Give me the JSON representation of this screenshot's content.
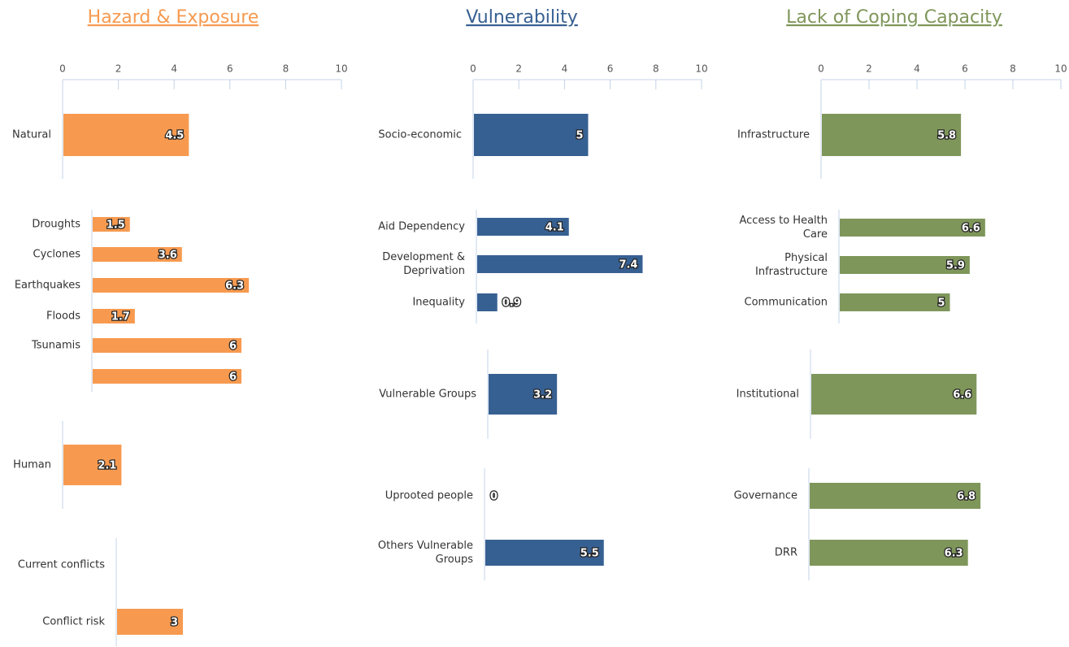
{
  "chart_data": [
    {
      "type": "bar",
      "title": "Hazard & Exposure",
      "categories": [
        "Natural"
      ],
      "values": [
        4.5
      ],
      "color": "#f79a50",
      "xlim": [
        0,
        10
      ],
      "xticks": [
        0,
        2,
        4,
        6,
        8,
        10
      ]
    },
    {
      "type": "bar",
      "categories": [
        "Droughts",
        "Cyclones",
        "Earthquakes",
        "Floods",
        "Tsunamis",
        null
      ],
      "values": [
        1.5,
        3.6,
        6.3,
        1.7,
        6,
        6
      ],
      "color": "#f79a50",
      "xlim": [
        0,
        10
      ]
    },
    {
      "type": "bar",
      "categories": [
        "Human"
      ],
      "values": [
        2.1
      ],
      "color": "#f79a50",
      "xlim": [
        0,
        10
      ]
    },
    {
      "type": "bar",
      "categories": [
        "Current conflicts",
        "Conflict risk"
      ],
      "values": [
        null,
        3
      ],
      "color": "#f79a50",
      "xlim": [
        0,
        10
      ]
    },
    {
      "type": "bar",
      "title": "Vulnerability",
      "categories": [
        "Socio-economic"
      ],
      "values": [
        5
      ],
      "color": "#376092",
      "xlim": [
        0,
        10
      ],
      "xticks": [
        0,
        2,
        4,
        6,
        8,
        10
      ]
    },
    {
      "type": "bar",
      "categories": [
        "Aid Dependency",
        "Development & Deprivation",
        "Inequality"
      ],
      "values": [
        4.1,
        7.4,
        0.9
      ],
      "color": "#376092",
      "xlim": [
        0,
        10
      ]
    },
    {
      "type": "bar",
      "categories": [
        "Vulnerable Groups"
      ],
      "values": [
        3.2
      ],
      "color": "#376092",
      "xlim": [
        0,
        10
      ]
    },
    {
      "type": "bar",
      "categories": [
        "Uprooted people",
        "Others Vulnerable Groups"
      ],
      "values": [
        0,
        5.5
      ],
      "color": "#376092",
      "xlim": [
        0,
        10
      ]
    },
    {
      "type": "bar",
      "title": "Lack of Coping Capacity",
      "categories": [
        "Infrastructure"
      ],
      "values": [
        5.8
      ],
      "color": "#7f965a",
      "xlim": [
        0,
        10
      ],
      "xticks": [
        0,
        2,
        4,
        6,
        8,
        10
      ]
    },
    {
      "type": "bar",
      "categories": [
        "Access to Health Care",
        "Physical Infrastructure",
        "Communication"
      ],
      "values": [
        6.6,
        5.9,
        5
      ],
      "color": "#7f965a",
      "xlim": [
        0,
        10
      ]
    },
    {
      "type": "bar",
      "categories": [
        "Institutional"
      ],
      "values": [
        6.6
      ],
      "color": "#7f965a",
      "xlim": [
        0,
        10
      ]
    },
    {
      "type": "bar",
      "categories": [
        "Governance",
        "DRR"
      ],
      "values": [
        6.8,
        6.3
      ],
      "color": "#7f965a",
      "xlim": [
        0,
        10
      ]
    }
  ]
}
